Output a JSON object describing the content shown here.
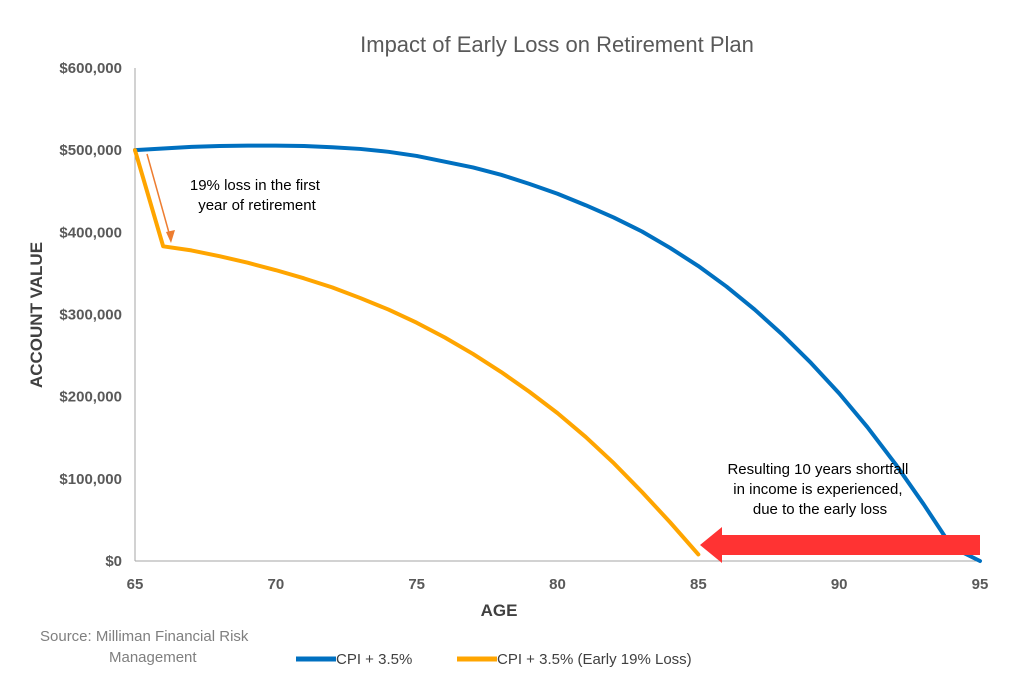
{
  "chart_data": {
    "type": "line",
    "title": "Impact of Early Loss on Retirement Plan",
    "xlabel": "AGE",
    "ylabel": "ACCOUNT VALUE",
    "xlim": [
      65,
      95
    ],
    "ylim": [
      0,
      600000
    ],
    "x_ticks": [
      "65",
      "70",
      "75",
      "80",
      "85",
      "90",
      "95"
    ],
    "y_ticks": [
      "$0",
      "$100,000",
      "$200,000",
      "$300,000",
      "$400,000",
      "$500,000",
      "$600,000"
    ],
    "grid": false,
    "legend_position": "bottom",
    "series": [
      {
        "name": "CPI + 3.5%",
        "color": "#0070c0",
        "x": [
          65,
          66,
          67,
          68,
          69,
          70,
          71,
          72,
          73,
          74,
          75,
          76,
          77,
          78,
          79,
          80,
          81,
          82,
          83,
          84,
          85,
          86,
          87,
          88,
          89,
          90,
          91,
          92,
          93,
          94,
          95
        ],
        "y": [
          500000,
          502000,
          504000,
          505000,
          505500,
          505500,
          505000,
          503500,
          501500,
          498000,
          493000,
          486000,
          479000,
          470000,
          459000,
          447000,
          433000,
          418000,
          401000,
          381000,
          359000,
          334000,
          306000,
          275000,
          241000,
          204000,
          163000,
          118000,
          69000,
          17000,
          0
        ]
      },
      {
        "name": "CPI + 3.5% (Early 19% Loss)",
        "color": "#ffa500",
        "x": [
          65,
          66,
          67,
          68,
          69,
          70,
          71,
          72,
          73,
          74,
          75,
          76,
          77,
          78,
          79,
          80,
          81,
          82,
          83,
          84,
          85
        ],
        "y": [
          500000,
          383000,
          378000,
          371000,
          363000,
          354000,
          344000,
          333000,
          320000,
          306000,
          290000,
          272000,
          252000,
          230000,
          206000,
          180000,
          151000,
          119000,
          84000,
          47000,
          8000
        ]
      }
    ],
    "annotations": {
      "early_loss_lines": [
        "19% loss in the first",
        "year of retirement"
      ],
      "shortfall_lines": [
        "Resulting 10 years shortfall",
        "in income is experienced,",
        "due to the early loss"
      ]
    },
    "source_lines": [
      "Source: Milliman Financial Risk",
      "Management"
    ],
    "colors": {
      "axis": "#a6a6a6",
      "loss_arrow": "#ed7d31",
      "shortfall_arrow": "#ff3333"
    }
  }
}
